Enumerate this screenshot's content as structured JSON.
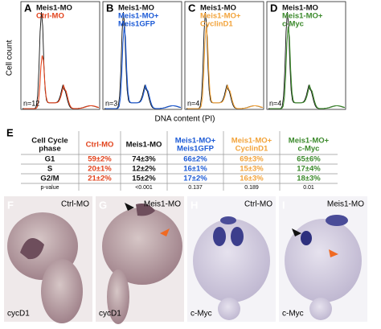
{
  "y_axis_label": "Cell count",
  "x_axis_label": "DNA content (PI)",
  "panels_top": [
    {
      "letter": "A",
      "labels": [
        "Meis1-MO",
        "Ctrl-MO"
      ],
      "n": "n=12"
    },
    {
      "letter": "B",
      "labels": [
        "Meis1-MO",
        "Meis1-MO+",
        "Meis1GFP"
      ],
      "n": "n=3"
    },
    {
      "letter": "C",
      "labels": [
        "Meis1-MO",
        "Meis1-MO+",
        "CyclinD1"
      ],
      "n": "n=4"
    },
    {
      "letter": "D",
      "labels": [
        "Meis1-MO",
        "Meis1-MO+",
        "c-Myc"
      ],
      "n": "n=4"
    }
  ],
  "table": {
    "letter": "E",
    "header": [
      [
        "Cell Cycle",
        "phase"
      ],
      [
        "Ctrl-MO"
      ],
      [
        "Meis1-MO"
      ],
      [
        "Meis1-MO+",
        "Meis1GFP"
      ],
      [
        "Meis1-MO+",
        "CyclinD1"
      ],
      [
        "Meis1-MO+",
        "c-Myc"
      ]
    ],
    "rows": [
      [
        "G1",
        "59±2%",
        "74±3%",
        "66±2%",
        "69±3%",
        "65±6%"
      ],
      [
        "S",
        "20±1%",
        "12±2%",
        "16±1%",
        "15±3%",
        "17±4%"
      ],
      [
        "G2/M",
        "21±2%",
        "15±2%",
        "17±2%",
        "16±3%",
        "18±3%"
      ]
    ],
    "p_value_label": "p-value",
    "p_values": [
      "<0.001",
      "0.137",
      "0.189",
      "0.01"
    ]
  },
  "panels_bottom": [
    {
      "letter": "F",
      "label": "Ctrl-MO",
      "stain": "cycD1"
    },
    {
      "letter": "G",
      "label": "Meis1-MO",
      "stain": "cycD1"
    },
    {
      "letter": "H",
      "label": "Ctrl-MO",
      "stain": "c-Myc"
    },
    {
      "letter": "I",
      "label": "Meis1-MO",
      "stain": "c-Myc"
    }
  ]
}
